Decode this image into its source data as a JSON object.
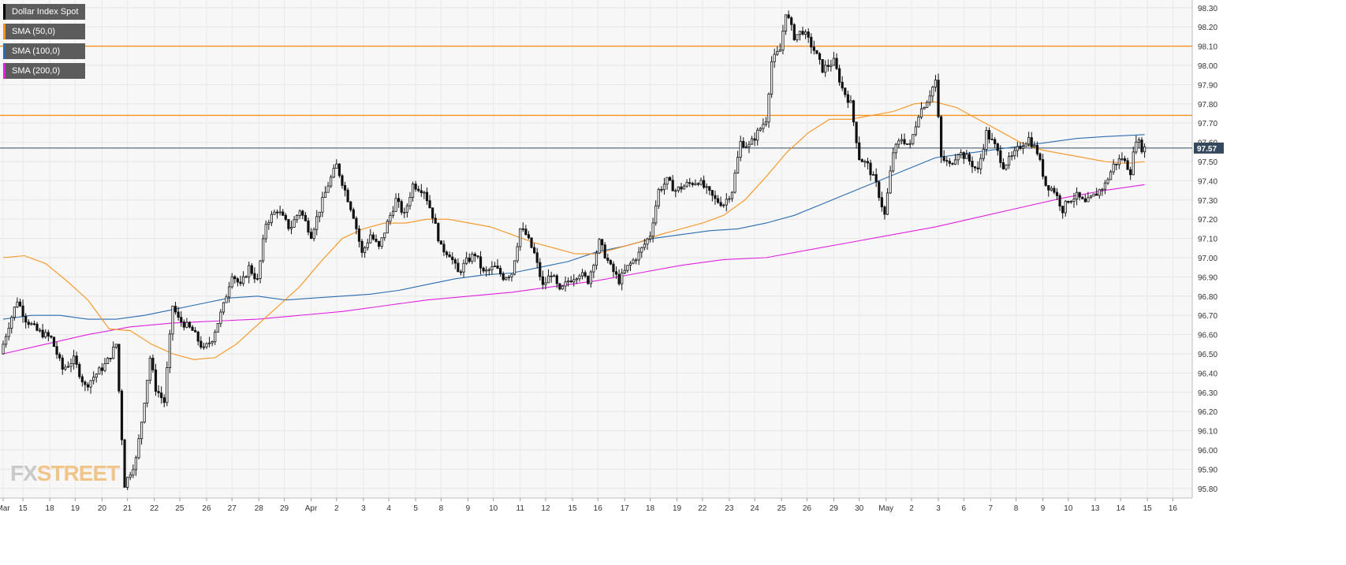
{
  "chart_data": {
    "type": "candlestick",
    "title": "",
    "instrument": "Dollar Index Spot",
    "legend": [
      {
        "name": "Dollar Index Spot",
        "color": "#000000"
      },
      {
        "name": "SMA (50,0)",
        "color": "#f7931e"
      },
      {
        "name": "SMA (100,0)",
        "color": "#2b6cb0"
      },
      {
        "name": "SMA (200,0)",
        "color": "#e020e0"
      }
    ],
    "yaxis": {
      "min": 95.75,
      "max": 98.34,
      "ticks": [
        "98.30",
        "98.20",
        "98.10",
        "98.00",
        "97.90",
        "97.80",
        "97.70",
        "97.60",
        "97.50",
        "97.40",
        "97.30",
        "97.20",
        "97.10",
        "97.00",
        "96.90",
        "96.80",
        "96.70",
        "96.60",
        "96.50",
        "96.40",
        "96.30",
        "96.20",
        "96.10",
        "96.00",
        "95.90",
        "95.80"
      ],
      "last_price": "97.57"
    },
    "xaxis": {
      "labels": [
        {
          "label": "Mar",
          "bar": 0
        },
        {
          "label": "15",
          "bar": 14
        },
        {
          "label": "18",
          "bar": 33
        },
        {
          "label": "19",
          "bar": 51
        },
        {
          "label": "20",
          "bar": 70
        },
        {
          "label": "21",
          "bar": 88
        },
        {
          "label": "22",
          "bar": 107
        },
        {
          "label": "25",
          "bar": 125
        },
        {
          "label": "26",
          "bar": 144
        },
        {
          "label": "27",
          "bar": 162
        },
        {
          "label": "28",
          "bar": 181
        },
        {
          "label": "29",
          "bar": 199
        },
        {
          "label": "Apr",
          "bar": 218
        },
        {
          "label": "2",
          "bar": 236
        },
        {
          "label": "3",
          "bar": 255
        },
        {
          "label": "4",
          "bar": 273
        },
        {
          "label": "5",
          "bar": 292
        },
        {
          "label": "8",
          "bar": 310
        },
        {
          "label": "9",
          "bar": 329
        },
        {
          "label": "10",
          "bar": 347
        },
        {
          "label": "11",
          "bar": 366
        },
        {
          "label": "12",
          "bar": 384
        },
        {
          "label": "15",
          "bar": 403
        },
        {
          "label": "16",
          "bar": 421
        },
        {
          "label": "17",
          "bar": 440
        },
        {
          "label": "18",
          "bar": 458
        },
        {
          "label": "19",
          "bar": 477
        },
        {
          "label": "22",
          "bar": 495
        },
        {
          "label": "23",
          "bar": 514
        },
        {
          "label": "24",
          "bar": 532
        },
        {
          "label": "25",
          "bar": 551
        },
        {
          "label": "26",
          "bar": 569
        },
        {
          "label": "29",
          "bar": 588
        },
        {
          "label": "30",
          "bar": 606
        },
        {
          "label": "May",
          "bar": 625
        },
        {
          "label": "2",
          "bar": 643
        },
        {
          "label": "3",
          "bar": 662
        },
        {
          "label": "6",
          "bar": 680
        },
        {
          "label": "7",
          "bar": 699
        },
        {
          "label": "8",
          "bar": 717
        },
        {
          "label": "9",
          "bar": 736
        },
        {
          "label": "10",
          "bar": 754
        },
        {
          "label": "13",
          "bar": 773
        },
        {
          "label": "14",
          "bar": 791
        },
        {
          "label": "15",
          "bar": 810
        },
        {
          "label": "16",
          "bar": 828
        }
      ],
      "total_bars": 830
    },
    "horizontal_levels": [
      {
        "value": 98.1,
        "color": "#f7931e"
      },
      {
        "value": 97.74,
        "color": "#f7931e"
      },
      {
        "value": 97.57,
        "color": "#34495e"
      }
    ],
    "anchors": [
      {
        "bar": 0,
        "price": 96.5
      },
      {
        "bar": 6,
        "price": 96.65
      },
      {
        "bar": 12,
        "price": 96.78
      },
      {
        "bar": 18,
        "price": 96.68
      },
      {
        "bar": 26,
        "price": 96.62
      },
      {
        "bar": 36,
        "price": 96.58
      },
      {
        "bar": 44,
        "price": 96.42
      },
      {
        "bar": 52,
        "price": 96.47
      },
      {
        "bar": 60,
        "price": 96.33
      },
      {
        "bar": 66,
        "price": 96.38
      },
      {
        "bar": 75,
        "price": 96.45
      },
      {
        "bar": 82,
        "price": 96.55
      },
      {
        "bar": 88,
        "price": 95.82
      },
      {
        "bar": 96,
        "price": 95.95
      },
      {
        "bar": 100,
        "price": 96.15
      },
      {
        "bar": 106,
        "price": 96.48
      },
      {
        "bar": 110,
        "price": 96.32
      },
      {
        "bar": 116,
        "price": 96.25
      },
      {
        "bar": 122,
        "price": 96.75
      },
      {
        "bar": 126,
        "price": 96.68
      },
      {
        "bar": 136,
        "price": 96.62
      },
      {
        "bar": 144,
        "price": 96.52
      },
      {
        "bar": 150,
        "price": 96.58
      },
      {
        "bar": 158,
        "price": 96.75
      },
      {
        "bar": 164,
        "price": 96.92
      },
      {
        "bar": 170,
        "price": 96.85
      },
      {
        "bar": 176,
        "price": 96.95
      },
      {
        "bar": 182,
        "price": 96.88
      },
      {
        "bar": 188,
        "price": 97.18
      },
      {
        "bar": 196,
        "price": 97.25
      },
      {
        "bar": 205,
        "price": 97.15
      },
      {
        "bar": 212,
        "price": 97.25
      },
      {
        "bar": 220,
        "price": 97.12
      },
      {
        "bar": 226,
        "price": 97.25
      },
      {
        "bar": 232,
        "price": 97.38
      },
      {
        "bar": 238,
        "price": 97.48
      },
      {
        "bar": 244,
        "price": 97.35
      },
      {
        "bar": 250,
        "price": 97.22
      },
      {
        "bar": 256,
        "price": 97.02
      },
      {
        "bar": 262,
        "price": 97.12
      },
      {
        "bar": 268,
        "price": 97.05
      },
      {
        "bar": 274,
        "price": 97.18
      },
      {
        "bar": 280,
        "price": 97.3
      },
      {
        "bar": 286,
        "price": 97.22
      },
      {
        "bar": 292,
        "price": 97.38
      },
      {
        "bar": 300,
        "price": 97.35
      },
      {
        "bar": 306,
        "price": 97.22
      },
      {
        "bar": 312,
        "price": 97.05
      },
      {
        "bar": 318,
        "price": 97.02
      },
      {
        "bar": 324,
        "price": 96.92
      },
      {
        "bar": 330,
        "price": 96.98
      },
      {
        "bar": 336,
        "price": 97.02
      },
      {
        "bar": 342,
        "price": 96.92
      },
      {
        "bar": 350,
        "price": 96.95
      },
      {
        "bar": 356,
        "price": 96.9
      },
      {
        "bar": 362,
        "price": 96.92
      },
      {
        "bar": 368,
        "price": 97.15
      },
      {
        "bar": 372,
        "price": 97.12
      },
      {
        "bar": 378,
        "price": 97.02
      },
      {
        "bar": 384,
        "price": 96.85
      },
      {
        "bar": 390,
        "price": 96.92
      },
      {
        "bar": 396,
        "price": 96.82
      },
      {
        "bar": 402,
        "price": 96.88
      },
      {
        "bar": 410,
        "price": 96.92
      },
      {
        "bar": 416,
        "price": 96.88
      },
      {
        "bar": 424,
        "price": 97.08
      },
      {
        "bar": 432,
        "price": 96.95
      },
      {
        "bar": 438,
        "price": 96.88
      },
      {
        "bar": 444,
        "price": 96.95
      },
      {
        "bar": 452,
        "price": 97.02
      },
      {
        "bar": 460,
        "price": 97.12
      },
      {
        "bar": 466,
        "price": 97.35
      },
      {
        "bar": 472,
        "price": 97.4
      },
      {
        "bar": 478,
        "price": 97.35
      },
      {
        "bar": 486,
        "price": 97.38
      },
      {
        "bar": 494,
        "price": 97.4
      },
      {
        "bar": 500,
        "price": 97.35
      },
      {
        "bar": 506,
        "price": 97.3
      },
      {
        "bar": 512,
        "price": 97.28
      },
      {
        "bar": 518,
        "price": 97.35
      },
      {
        "bar": 524,
        "price": 97.6
      },
      {
        "bar": 530,
        "price": 97.58
      },
      {
        "bar": 536,
        "price": 97.65
      },
      {
        "bar": 542,
        "price": 97.72
      },
      {
        "bar": 546,
        "price": 98.02
      },
      {
        "bar": 552,
        "price": 98.08
      },
      {
        "bar": 556,
        "price": 98.28
      },
      {
        "bar": 562,
        "price": 98.15
      },
      {
        "bar": 568,
        "price": 98.18
      },
      {
        "bar": 576,
        "price": 98.08
      },
      {
        "bar": 582,
        "price": 97.98
      },
      {
        "bar": 590,
        "price": 98.02
      },
      {
        "bar": 596,
        "price": 97.88
      },
      {
        "bar": 602,
        "price": 97.8
      },
      {
        "bar": 608,
        "price": 97.52
      },
      {
        "bar": 614,
        "price": 97.48
      },
      {
        "bar": 620,
        "price": 97.38
      },
      {
        "bar": 626,
        "price": 97.22
      },
      {
        "bar": 632,
        "price": 97.55
      },
      {
        "bar": 638,
        "price": 97.62
      },
      {
        "bar": 644,
        "price": 97.58
      },
      {
        "bar": 650,
        "price": 97.75
      },
      {
        "bar": 656,
        "price": 97.82
      },
      {
        "bar": 662,
        "price": 97.92
      },
      {
        "bar": 666,
        "price": 97.52
      },
      {
        "bar": 672,
        "price": 97.48
      },
      {
        "bar": 678,
        "price": 97.55
      },
      {
        "bar": 684,
        "price": 97.52
      },
      {
        "bar": 692,
        "price": 97.45
      },
      {
        "bar": 698,
        "price": 97.65
      },
      {
        "bar": 704,
        "price": 97.58
      },
      {
        "bar": 710,
        "price": 97.48
      },
      {
        "bar": 716,
        "price": 97.52
      },
      {
        "bar": 722,
        "price": 97.58
      },
      {
        "bar": 728,
        "price": 97.62
      },
      {
        "bar": 734,
        "price": 97.55
      },
      {
        "bar": 740,
        "price": 97.38
      },
      {
        "bar": 746,
        "price": 97.35
      },
      {
        "bar": 752,
        "price": 97.25
      },
      {
        "bar": 756,
        "price": 97.3
      },
      {
        "bar": 762,
        "price": 97.32
      },
      {
        "bar": 768,
        "price": 97.28
      },
      {
        "bar": 774,
        "price": 97.32
      },
      {
        "bar": 782,
        "price": 97.38
      },
      {
        "bar": 788,
        "price": 97.48
      },
      {
        "bar": 794,
        "price": 97.52
      },
      {
        "bar": 800,
        "price": 97.45
      },
      {
        "bar": 804,
        "price": 97.62
      },
      {
        "bar": 808,
        "price": 97.57
      }
    ],
    "sma50": [
      [
        0,
        97.0
      ],
      [
        15,
        97.01
      ],
      [
        30,
        96.97
      ],
      [
        45,
        96.88
      ],
      [
        60,
        96.78
      ],
      [
        75,
        96.63
      ],
      [
        90,
        96.62
      ],
      [
        105,
        96.55
      ],
      [
        120,
        96.5
      ],
      [
        135,
        96.47
      ],
      [
        150,
        96.48
      ],
      [
        165,
        96.55
      ],
      [
        180,
        96.65
      ],
      [
        195,
        96.75
      ],
      [
        210,
        96.85
      ],
      [
        225,
        96.98
      ],
      [
        240,
        97.1
      ],
      [
        255,
        97.15
      ],
      [
        270,
        97.18
      ],
      [
        285,
        97.18
      ],
      [
        300,
        97.2
      ],
      [
        315,
        97.2
      ],
      [
        330,
        97.18
      ],
      [
        345,
        97.16
      ],
      [
        360,
        97.12
      ],
      [
        375,
        97.08
      ],
      [
        390,
        97.05
      ],
      [
        405,
        97.02
      ],
      [
        420,
        97.02
      ],
      [
        435,
        97.05
      ],
      [
        450,
        97.08
      ],
      [
        465,
        97.12
      ],
      [
        480,
        97.15
      ],
      [
        495,
        97.18
      ],
      [
        510,
        97.22
      ],
      [
        525,
        97.3
      ],
      [
        540,
        97.42
      ],
      [
        555,
        97.55
      ],
      [
        570,
        97.65
      ],
      [
        585,
        97.72
      ],
      [
        600,
        97.72
      ],
      [
        615,
        97.74
      ],
      [
        630,
        97.76
      ],
      [
        645,
        97.8
      ],
      [
        660,
        97.81
      ],
      [
        675,
        97.78
      ],
      [
        690,
        97.72
      ],
      [
        705,
        97.66
      ],
      [
        720,
        97.6
      ],
      [
        735,
        97.56
      ],
      [
        750,
        97.54
      ],
      [
        765,
        97.52
      ],
      [
        780,
        97.5
      ],
      [
        795,
        97.49
      ],
      [
        808,
        97.5
      ]
    ],
    "sma100": [
      [
        0,
        96.68
      ],
      [
        20,
        96.7
      ],
      [
        40,
        96.7
      ],
      [
        60,
        96.68
      ],
      [
        80,
        96.68
      ],
      [
        100,
        96.7
      ],
      [
        120,
        96.73
      ],
      [
        140,
        96.76
      ],
      [
        160,
        96.79
      ],
      [
        180,
        96.8
      ],
      [
        200,
        96.78
      ],
      [
        220,
        96.79
      ],
      [
        240,
        96.8
      ],
      [
        260,
        96.81
      ],
      [
        280,
        96.83
      ],
      [
        300,
        96.86
      ],
      [
        320,
        96.89
      ],
      [
        340,
        96.91
      ],
      [
        360,
        96.92
      ],
      [
        380,
        96.95
      ],
      [
        400,
        96.98
      ],
      [
        420,
        97.03
      ],
      [
        440,
        97.06
      ],
      [
        460,
        97.1
      ],
      [
        480,
        97.12
      ],
      [
        500,
        97.14
      ],
      [
        520,
        97.15
      ],
      [
        540,
        97.18
      ],
      [
        560,
        97.22
      ],
      [
        580,
        97.28
      ],
      [
        600,
        97.34
      ],
      [
        620,
        97.4
      ],
      [
        640,
        97.46
      ],
      [
        660,
        97.52
      ],
      [
        680,
        97.54
      ],
      [
        700,
        97.56
      ],
      [
        720,
        97.58
      ],
      [
        740,
        97.6
      ],
      [
        760,
        97.62
      ],
      [
        780,
        97.63
      ],
      [
        808,
        97.64
      ]
    ],
    "sma200": [
      [
        0,
        96.5
      ],
      [
        30,
        96.55
      ],
      [
        60,
        96.6
      ],
      [
        90,
        96.64
      ],
      [
        120,
        96.66
      ],
      [
        150,
        96.67
      ],
      [
        180,
        96.68
      ],
      [
        210,
        96.7
      ],
      [
        240,
        96.72
      ],
      [
        270,
        96.75
      ],
      [
        300,
        96.78
      ],
      [
        330,
        96.8
      ],
      [
        360,
        96.82
      ],
      [
        390,
        96.85
      ],
      [
        420,
        96.88
      ],
      [
        450,
        96.92
      ],
      [
        480,
        96.96
      ],
      [
        510,
        96.99
      ],
      [
        540,
        97.0
      ],
      [
        570,
        97.04
      ],
      [
        600,
        97.08
      ],
      [
        630,
        97.12
      ],
      [
        660,
        97.16
      ],
      [
        690,
        97.21
      ],
      [
        720,
        97.26
      ],
      [
        750,
        97.31
      ],
      [
        780,
        97.35
      ],
      [
        808,
        97.38
      ]
    ]
  },
  "watermark": {
    "fx": "FX",
    "street": "STREET"
  }
}
